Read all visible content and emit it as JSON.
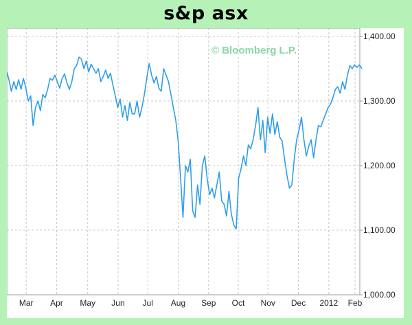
{
  "title": "s&p asx",
  "chart_data": {
    "type": "line",
    "watermark": "© Bloomberg L.P.",
    "ylim": [
      1000,
      1400
    ],
    "yticks": [
      1000,
      1100,
      1200,
      1300,
      1400
    ],
    "ytick_labels": [
      "1,000.00",
      "1,100.00",
      "1,200.00",
      "1,300.00",
      "1,400.00"
    ],
    "xlim": [
      0,
      100
    ],
    "xticks": [
      {
        "label": "Mar",
        "x": 5.6
      },
      {
        "label": "Apr",
        "x": 14.4
      },
      {
        "label": "May",
        "x": 23.4
      },
      {
        "label": "Jun",
        "x": 32.2
      },
      {
        "label": "Jul",
        "x": 40.8
      },
      {
        "label": "Aug",
        "x": 49.6
      },
      {
        "label": "Sep",
        "x": 58.4
      },
      {
        "label": "Oct",
        "x": 67.0
      },
      {
        "label": "Nov",
        "x": 75.6
      },
      {
        "label": "Dec",
        "x": 84.4
      },
      {
        "label": "2012",
        "x": 93.2
      },
      {
        "label": "Feb",
        "x": 100.8
      }
    ],
    "grid": true,
    "line_color": "#2f9ee8",
    "series": [
      {
        "points": [
          [
            0.0,
            1345
          ],
          [
            0.6,
            1333
          ],
          [
            1.3,
            1315
          ],
          [
            2.0,
            1330
          ],
          [
            2.7,
            1318
          ],
          [
            3.4,
            1333
          ],
          [
            4.1,
            1318
          ],
          [
            4.8,
            1335
          ],
          [
            5.5,
            1320
          ],
          [
            6.2,
            1300
          ],
          [
            6.9,
            1308
          ],
          [
            7.6,
            1262
          ],
          [
            8.3,
            1290
          ],
          [
            9.0,
            1300
          ],
          [
            9.7,
            1285
          ],
          [
            10.4,
            1310
          ],
          [
            11.1,
            1305
          ],
          [
            11.8,
            1318
          ],
          [
            12.5,
            1335
          ],
          [
            13.2,
            1332
          ],
          [
            13.9,
            1340
          ],
          [
            14.6,
            1330
          ],
          [
            15.3,
            1320
          ],
          [
            16.0,
            1335
          ],
          [
            16.7,
            1342
          ],
          [
            17.4,
            1328
          ],
          [
            18.1,
            1318
          ],
          [
            18.8,
            1330
          ],
          [
            19.5,
            1350
          ],
          [
            20.2,
            1355
          ],
          [
            20.9,
            1368
          ],
          [
            21.6,
            1365
          ],
          [
            22.3,
            1350
          ],
          [
            23.0,
            1362
          ],
          [
            23.7,
            1345
          ],
          [
            24.4,
            1357
          ],
          [
            25.1,
            1350
          ],
          [
            25.8,
            1343
          ],
          [
            26.5,
            1350
          ],
          [
            27.2,
            1330
          ],
          [
            27.9,
            1338
          ],
          [
            28.6,
            1348
          ],
          [
            29.3,
            1335
          ],
          [
            30.0,
            1343
          ],
          [
            30.7,
            1325
          ],
          [
            31.4,
            1308
          ],
          [
            32.1,
            1290
          ],
          [
            32.8,
            1303
          ],
          [
            33.5,
            1275
          ],
          [
            34.2,
            1293
          ],
          [
            34.9,
            1270
          ],
          [
            35.6,
            1298
          ],
          [
            36.3,
            1280
          ],
          [
            37.0,
            1280
          ],
          [
            37.7,
            1300
          ],
          [
            38.4,
            1275
          ],
          [
            39.1,
            1290
          ],
          [
            39.8,
            1310
          ],
          [
            40.5,
            1335
          ],
          [
            41.2,
            1358
          ],
          [
            41.9,
            1340
          ],
          [
            42.6,
            1328
          ],
          [
            43.3,
            1338
          ],
          [
            44.0,
            1320
          ],
          [
            44.7,
            1315
          ],
          [
            45.4,
            1350
          ],
          [
            46.1,
            1340
          ],
          [
            46.8,
            1330
          ],
          [
            47.5,
            1310
          ],
          [
            48.2,
            1290
          ],
          [
            48.9,
            1270
          ],
          [
            49.6,
            1238
          ],
          [
            50.3,
            1180
          ],
          [
            51.0,
            1120
          ],
          [
            51.7,
            1200
          ],
          [
            52.4,
            1190
          ],
          [
            53.1,
            1210
          ],
          [
            53.8,
            1130
          ],
          [
            54.5,
            1120
          ],
          [
            55.2,
            1170
          ],
          [
            55.9,
            1140
          ],
          [
            56.6,
            1200
          ],
          [
            57.3,
            1215
          ],
          [
            58.0,
            1180
          ],
          [
            58.7,
            1155
          ],
          [
            59.4,
            1165
          ],
          [
            60.1,
            1150
          ],
          [
            60.8,
            1170
          ],
          [
            61.5,
            1190
          ],
          [
            62.2,
            1145
          ],
          [
            62.9,
            1140
          ],
          [
            63.6,
            1122
          ],
          [
            64.3,
            1160
          ],
          [
            65.0,
            1125
          ],
          [
            65.7,
            1108
          ],
          [
            66.4,
            1102
          ],
          [
            67.1,
            1180
          ],
          [
            67.8,
            1195
          ],
          [
            68.5,
            1215
          ],
          [
            69.2,
            1200
          ],
          [
            69.9,
            1232
          ],
          [
            70.6,
            1226
          ],
          [
            71.3,
            1240
          ],
          [
            72.0,
            1262
          ],
          [
            72.7,
            1290
          ],
          [
            73.4,
            1240
          ],
          [
            74.1,
            1270
          ],
          [
            74.8,
            1220
          ],
          [
            75.5,
            1275
          ],
          [
            76.2,
            1250
          ],
          [
            76.9,
            1280
          ],
          [
            77.6,
            1248
          ],
          [
            78.3,
            1268
          ],
          [
            79.0,
            1244
          ],
          [
            79.7,
            1238
          ],
          [
            80.4,
            1210
          ],
          [
            81.1,
            1185
          ],
          [
            81.8,
            1165
          ],
          [
            82.5,
            1170
          ],
          [
            83.2,
            1210
          ],
          [
            83.9,
            1240
          ],
          [
            84.6,
            1255
          ],
          [
            85.3,
            1275
          ],
          [
            86.0,
            1240
          ],
          [
            86.7,
            1215
          ],
          [
            87.4,
            1230
          ],
          [
            88.1,
            1240
          ],
          [
            88.8,
            1212
          ],
          [
            89.5,
            1240
          ],
          [
            90.2,
            1262
          ],
          [
            90.9,
            1260
          ],
          [
            91.6,
            1270
          ],
          [
            92.3,
            1280
          ],
          [
            93.0,
            1290
          ],
          [
            93.7,
            1295
          ],
          [
            94.4,
            1305
          ],
          [
            95.1,
            1318
          ],
          [
            95.8,
            1322
          ],
          [
            96.5,
            1312
          ],
          [
            97.2,
            1330
          ],
          [
            97.9,
            1318
          ],
          [
            98.6,
            1340
          ],
          [
            99.3,
            1355
          ],
          [
            100.0,
            1350
          ],
          [
            100.7,
            1356
          ],
          [
            101.4,
            1352
          ],
          [
            102.1,
            1356
          ],
          [
            102.8,
            1350
          ]
        ]
      }
    ]
  }
}
